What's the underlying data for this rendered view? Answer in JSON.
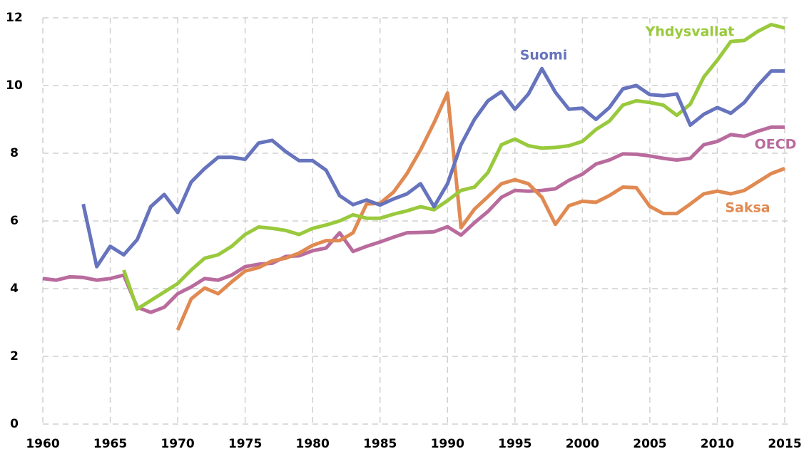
{
  "chart_data": {
    "type": "line",
    "x": [
      1960,
      1961,
      1962,
      1963,
      1964,
      1965,
      1966,
      1967,
      1968,
      1969,
      1970,
      1971,
      1972,
      1973,
      1974,
      1975,
      1976,
      1977,
      1978,
      1979,
      1980,
      1981,
      1982,
      1983,
      1984,
      1985,
      1986,
      1987,
      1988,
      1989,
      1990,
      1991,
      1992,
      1993,
      1994,
      1995,
      1996,
      1997,
      1998,
      1999,
      2000,
      2001,
      2002,
      2003,
      2004,
      2005,
      2006,
      2007,
      2008,
      2009,
      2010,
      2011,
      2012,
      2013,
      2014,
      2015
    ],
    "series": [
      {
        "name": "OECD",
        "color": "#b96b9d",
        "values": [
          4.3,
          4.25,
          4.35,
          4.33,
          4.25,
          4.3,
          4.4,
          3.45,
          3.3,
          3.45,
          3.85,
          4.05,
          4.3,
          4.25,
          4.4,
          4.65,
          4.72,
          4.75,
          4.95,
          4.97,
          5.12,
          5.2,
          5.65,
          5.1,
          5.25,
          5.38,
          5.52,
          5.65,
          5.66,
          5.68,
          5.83,
          5.58,
          5.95,
          6.28,
          6.7,
          6.9,
          6.88,
          6.9,
          6.95,
          7.2,
          7.38,
          7.68,
          7.8,
          7.98,
          7.97,
          7.92,
          7.85,
          7.8,
          7.85,
          8.25,
          8.35,
          8.55,
          8.5,
          8.65,
          8.77,
          8.77
        ]
      },
      {
        "name": "Saksa",
        "color": "#e08a52",
        "values": [
          null,
          null,
          null,
          null,
          null,
          null,
          null,
          null,
          null,
          null,
          2.78,
          3.7,
          4.02,
          3.85,
          4.2,
          4.52,
          4.62,
          4.82,
          4.9,
          5.05,
          5.28,
          5.42,
          5.42,
          5.65,
          6.5,
          6.52,
          6.85,
          7.4,
          8.1,
          8.9,
          9.78,
          5.8,
          6.35,
          6.72,
          7.1,
          7.22,
          7.1,
          6.7,
          5.9,
          6.45,
          6.58,
          6.55,
          6.75,
          7.0,
          6.98,
          6.43,
          6.22,
          6.22,
          6.5,
          6.8,
          6.88,
          6.8,
          6.9,
          7.15,
          7.4,
          7.55
        ]
      },
      {
        "name": "Yhdysvallat",
        "color": "#99c93c",
        "values": [
          null,
          null,
          null,
          null,
          null,
          null,
          4.55,
          3.4,
          3.65,
          3.9,
          4.15,
          4.55,
          4.9,
          5.0,
          5.25,
          5.6,
          5.82,
          5.78,
          5.72,
          5.6,
          5.78,
          5.88,
          6.0,
          6.18,
          6.08,
          6.08,
          6.2,
          6.3,
          6.42,
          6.33,
          6.6,
          6.9,
          7.0,
          7.43,
          8.25,
          8.42,
          8.22,
          8.15,
          8.17,
          8.22,
          8.35,
          8.7,
          8.95,
          9.42,
          9.55,
          9.5,
          9.42,
          9.12,
          9.45,
          10.25,
          10.75,
          11.3,
          11.33,
          11.6,
          11.8,
          11.7
        ]
      },
      {
        "name": "Suomi",
        "color": "#6673bd",
        "values": [
          null,
          null,
          null,
          6.5,
          4.65,
          5.25,
          5.0,
          5.45,
          6.42,
          6.78,
          6.25,
          7.15,
          7.55,
          7.88,
          7.88,
          7.82,
          8.3,
          8.38,
          8.05,
          7.78,
          7.78,
          7.5,
          6.75,
          6.48,
          6.62,
          6.47,
          6.65,
          6.8,
          7.1,
          6.42,
          7.1,
          8.25,
          9.0,
          9.55,
          9.82,
          9.3,
          9.75,
          10.5,
          9.8,
          9.3,
          9.33,
          9.0,
          9.35,
          9.9,
          10.0,
          9.73,
          9.7,
          9.75,
          8.83,
          9.15,
          9.35,
          9.18,
          9.5,
          10.0,
          10.43,
          10.43
        ]
      }
    ],
    "xlim": [
      1960,
      2015
    ],
    "xticks": [
      1960,
      1965,
      1970,
      1975,
      1980,
      1985,
      1990,
      1995,
      2000,
      2005,
      2010,
      2015
    ],
    "ylim": [
      0,
      12
    ],
    "yticks": [
      0,
      2,
      4,
      6,
      8,
      10,
      12
    ],
    "grid": true
  }
}
